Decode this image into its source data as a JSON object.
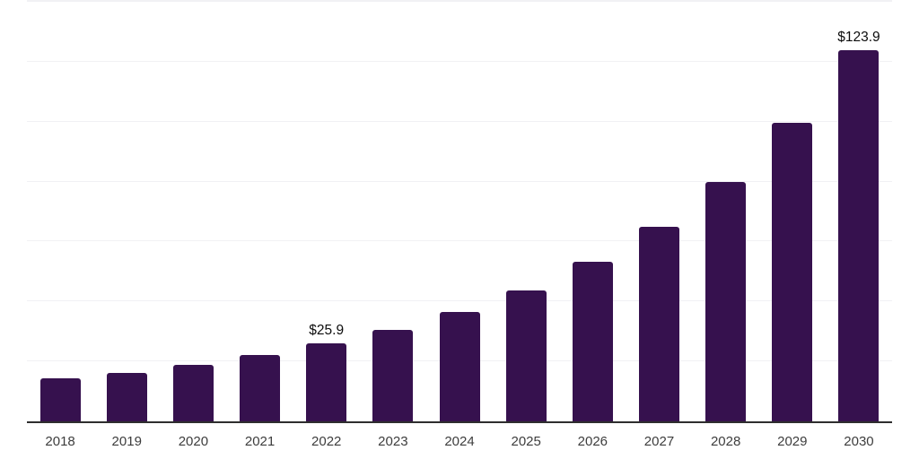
{
  "page": {
    "background_color": "#ffffff"
  },
  "chart_data": {
    "type": "bar",
    "title": "",
    "xlabel": "",
    "ylabel": "",
    "categories": [
      "2018",
      "2019",
      "2020",
      "2021",
      "2022",
      "2023",
      "2024",
      "2025",
      "2026",
      "2027",
      "2028",
      "2029",
      "2030"
    ],
    "values": [
      14.4,
      16.3,
      18.8,
      22.1,
      25.9,
      30.4,
      36.4,
      43.8,
      53.3,
      65.0,
      79.8,
      99.5,
      123.9
    ],
    "data_labels": [
      "",
      "",
      "",
      "",
      "$25.9",
      "",
      "",
      "",
      "",
      "",
      "",
      "",
      "$123.9"
    ],
    "ylim": [
      0,
      140
    ],
    "gridline_step": 20,
    "grid": true,
    "legend": false,
    "y_tick_labels_visible": false,
    "bar_color": "#36114e",
    "axis_line_color": "#2e2e2e",
    "gridline_color": "#f1f1f4",
    "data_label_color": "#0d0d0d",
    "tick_label_color": "#3d3d3d"
  }
}
